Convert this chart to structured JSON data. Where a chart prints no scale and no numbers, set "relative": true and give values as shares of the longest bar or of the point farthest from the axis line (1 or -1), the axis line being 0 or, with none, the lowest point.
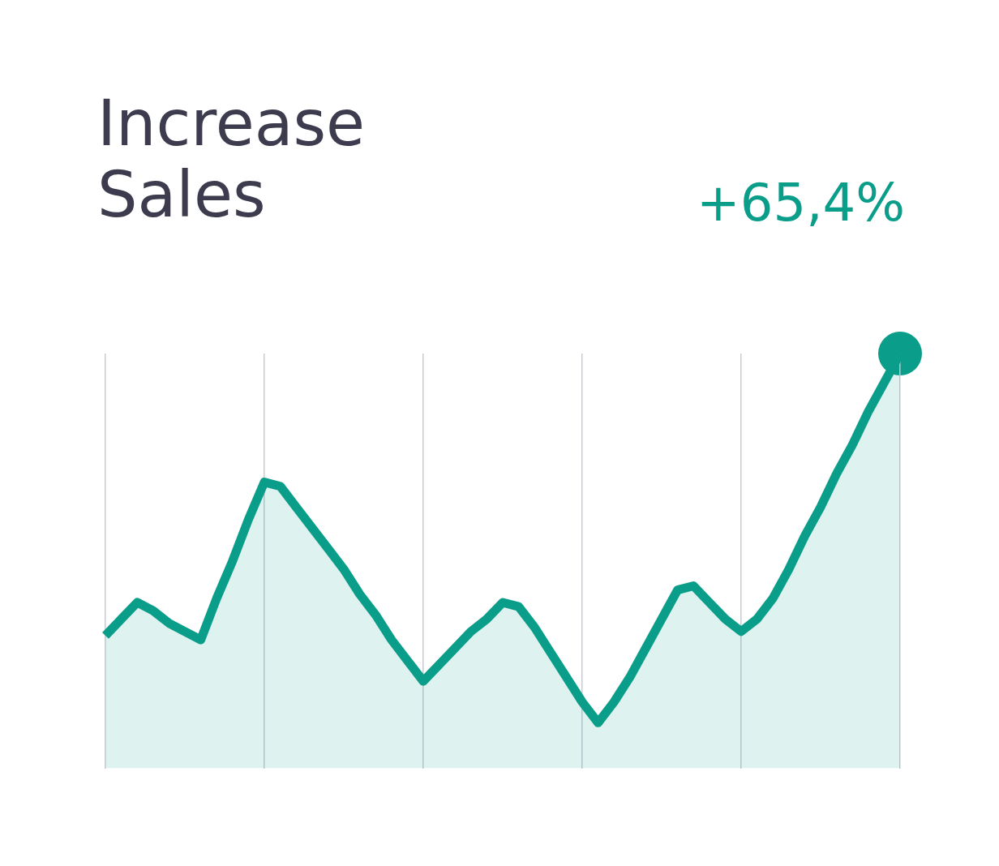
{
  "chart_data": {
    "type": "area",
    "title": "Increase Sales",
    "relative": true,
    "annotations": [
      "+65,4%"
    ],
    "categories": [
      null,
      null,
      null,
      null,
      null,
      null,
      null,
      null,
      null,
      null,
      null,
      null,
      null,
      null,
      null,
      null,
      null,
      null,
      null,
      null,
      null,
      null,
      null,
      null,
      null,
      null,
      null,
      null,
      null,
      null,
      null,
      null,
      null,
      null,
      null,
      null,
      null,
      null,
      null,
      null,
      null,
      null,
      null,
      null,
      null,
      null,
      null,
      null,
      null,
      null,
      null
    ],
    "series": [
      {
        "color": "#0a9e8a",
        "values": [
          0.32,
          0.36,
          0.4,
          0.38,
          0.35,
          0.33,
          0.31,
          0.41,
          0.5,
          0.6,
          0.69,
          0.68,
          0.63,
          0.58,
          0.53,
          0.48,
          0.42,
          0.37,
          0.31,
          0.26,
          0.21,
          0.25,
          0.29,
          0.33,
          0.36,
          0.4,
          0.39,
          0.34,
          0.28,
          0.22,
          0.16,
          0.11,
          0.16,
          0.22,
          0.29,
          0.36,
          0.43,
          0.44,
          0.4,
          0.36,
          0.33,
          0.36,
          0.41,
          0.48,
          0.56,
          0.63,
          0.71,
          0.78,
          0.86,
          0.93,
          1.0
        ]
      }
    ],
    "grid": "x",
    "legend": false
  }
}
